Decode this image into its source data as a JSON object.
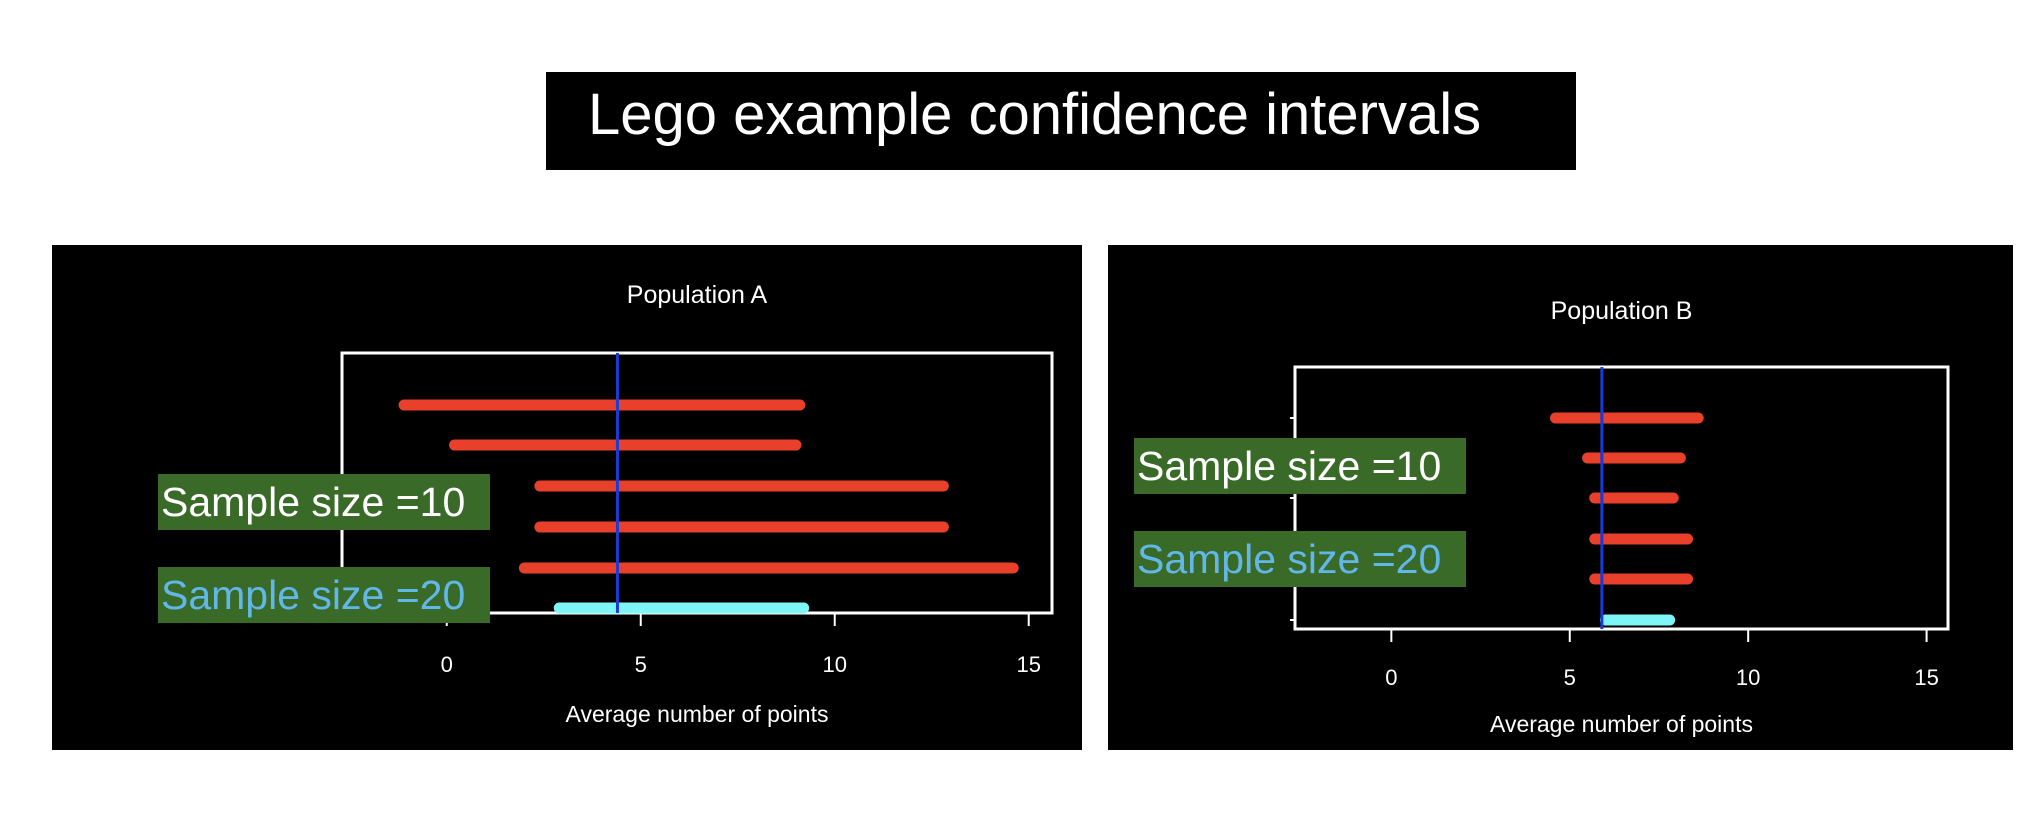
{
  "title": "Lego example confidence intervals",
  "colors": {
    "page_bg": "#ffffff",
    "panel_bg": "#000000",
    "axes": "#ffffff",
    "size10_interval": "#e8402a",
    "size20_interval": "#7ef5f6",
    "mean_line": "#1b3bd6",
    "callout_bg": "#3a6a27",
    "callout_size10_text": "#ffffff",
    "callout_size20_text": "#61b8e8"
  },
  "callouts": {
    "size10": "Sample size =10",
    "size20": "Sample size =20"
  },
  "chart_data": [
    {
      "type": "interval",
      "title": "Population A",
      "xlabel": "Average number of points",
      "xlim": [
        -2.7,
        15.6
      ],
      "xticks": [
        0,
        5,
        10,
        15
      ],
      "xtick_labels": [
        "0",
        "5",
        "10",
        "15"
      ],
      "vline": 4.4,
      "series": [
        {
          "name": "Sample size =10",
          "color": "#e8402a",
          "intervals": [
            [
              -1.1,
              9.1
            ],
            [
              0.2,
              9.0
            ],
            [
              2.4,
              12.8
            ],
            [
              2.4,
              12.8
            ],
            [
              2.0,
              14.6
            ]
          ]
        },
        {
          "name": "Sample size =20",
          "color": "#7ef5f6",
          "intervals": [
            [
              2.9,
              9.2
            ]
          ]
        }
      ]
    },
    {
      "type": "interval",
      "title": "Population B",
      "xlabel": "Average number of points",
      "xlim": [
        -2.7,
        15.6
      ],
      "xticks": [
        0,
        5,
        10,
        15
      ],
      "xtick_labels": [
        "0",
        "5",
        "10",
        "15"
      ],
      "vline": 5.9,
      "series": [
        {
          "name": "Sample size =10",
          "color": "#e8402a",
          "intervals": [
            [
              4.6,
              8.6
            ],
            [
              5.5,
              8.1
            ],
            [
              5.7,
              7.9
            ],
            [
              5.7,
              8.3
            ],
            [
              5.7,
              8.3
            ]
          ]
        },
        {
          "name": "Sample size =20",
          "color": "#7ef5f6",
          "intervals": [
            [
              6.0,
              7.8
            ]
          ]
        }
      ]
    }
  ]
}
